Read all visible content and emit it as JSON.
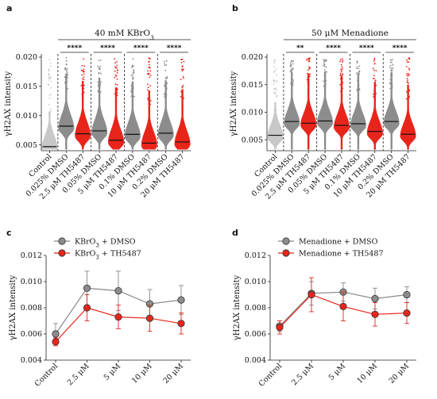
{
  "colors": {
    "control": "#c8c8c8",
    "dmso": "#8c8c8c",
    "th": "#e8251b",
    "line_dmso": "#888888",
    "line_th": "#e8251b"
  },
  "chart_data": [
    {
      "panel": "a",
      "type": "scatter",
      "header": "40 mM KBrO",
      "header_sub": "3",
      "ylabel": "γH2AX intensity",
      "ylim": [
        0.004,
        0.02
      ],
      "yticks": [
        "0.020",
        "0.015",
        "0.010",
        "0.005"
      ],
      "categories": [
        "Control",
        "0.025% DMSO",
        "2.5 μM TH5487",
        "0.05% DMSO",
        "5 μM TH5487",
        "0.1% DMSO",
        "10 μM TH5487",
        "0.2% DMSO",
        "20 μM TH5487"
      ],
      "medians": [
        0.0047,
        0.0082,
        0.0069,
        0.0074,
        0.0058,
        0.0068,
        0.0053,
        0.007,
        0.0055
      ],
      "significance": [
        "****",
        "****",
        "****",
        "****"
      ]
    },
    {
      "panel": "b",
      "type": "scatter",
      "header": "50 μM Menadione",
      "ylabel": "γH2AX intensity",
      "ylim": [
        0.003,
        0.02
      ],
      "yticks": [
        "0.020",
        "0.015",
        "0.010",
        "0.005"
      ],
      "categories": [
        "Control",
        "0.025% DMSO",
        "2.5 μM TH5487",
        "0.05% DMSO",
        "5 μM TH5487",
        "0.1% DMSO",
        "10 μM TH5487",
        "0.2% DMSO",
        "20 μM TH5487"
      ],
      "medians": [
        0.0058,
        0.0083,
        0.008,
        0.0084,
        0.0076,
        0.0079,
        0.0065,
        0.0083,
        0.006
      ],
      "significance": [
        "**",
        "****",
        "****",
        "****"
      ]
    },
    {
      "panel": "c",
      "type": "line",
      "ylabel": "γH2AX intensity",
      "ylim": [
        0.004,
        0.012
      ],
      "yticks": [
        "0.012",
        "0.010",
        "0.008",
        "0.006",
        "0.004"
      ],
      "categories": [
        "Control",
        "2.5 μM",
        "5 μM",
        "10 μM",
        "20 μM"
      ],
      "legend": [
        {
          "prefix": "KBrO",
          "sub": "3",
          "suffix": " + DMSO"
        },
        {
          "prefix": "KBrO",
          "sub": "3",
          "suffix": " + TH5487"
        }
      ],
      "series": [
        {
          "values": [
            0.006,
            0.0095,
            0.0093,
            0.0083,
            0.0086
          ],
          "errors": [
            0.0008,
            0.0013,
            0.0015,
            0.0011,
            0.0011
          ]
        },
        {
          "values": [
            0.0054,
            0.008,
            0.0073,
            0.0072,
            0.0068
          ],
          "errors": [
            0.0003,
            0.001,
            0.0009,
            0.001,
            0.0008
          ]
        }
      ]
    },
    {
      "panel": "d",
      "type": "line",
      "ylabel": "γH2AX intensity",
      "ylim": [
        0.004,
        0.012
      ],
      "yticks": [
        "0.012",
        "0.010",
        "0.008",
        "0.006",
        "0.004"
      ],
      "categories": [
        "Control",
        "2.5 μM",
        "5 μM",
        "10 μM",
        "20 μM"
      ],
      "legend": [
        {
          "prefix": "Menadione + DMSO",
          "sub": "",
          "suffix": ""
        },
        {
          "prefix": "Menadione + TH5487",
          "sub": "",
          "suffix": ""
        }
      ],
      "series": [
        {
          "values": [
            0.0066,
            0.0091,
            0.0092,
            0.0087,
            0.009
          ],
          "errors": [
            0.0004,
            0.0009,
            0.0007,
            0.0008,
            0.0006
          ]
        },
        {
          "values": [
            0.0065,
            0.009,
            0.0081,
            0.0075,
            0.0076
          ],
          "errors": [
            0.0005,
            0.0013,
            0.0011,
            0.0009,
            0.0008
          ]
        }
      ]
    }
  ]
}
